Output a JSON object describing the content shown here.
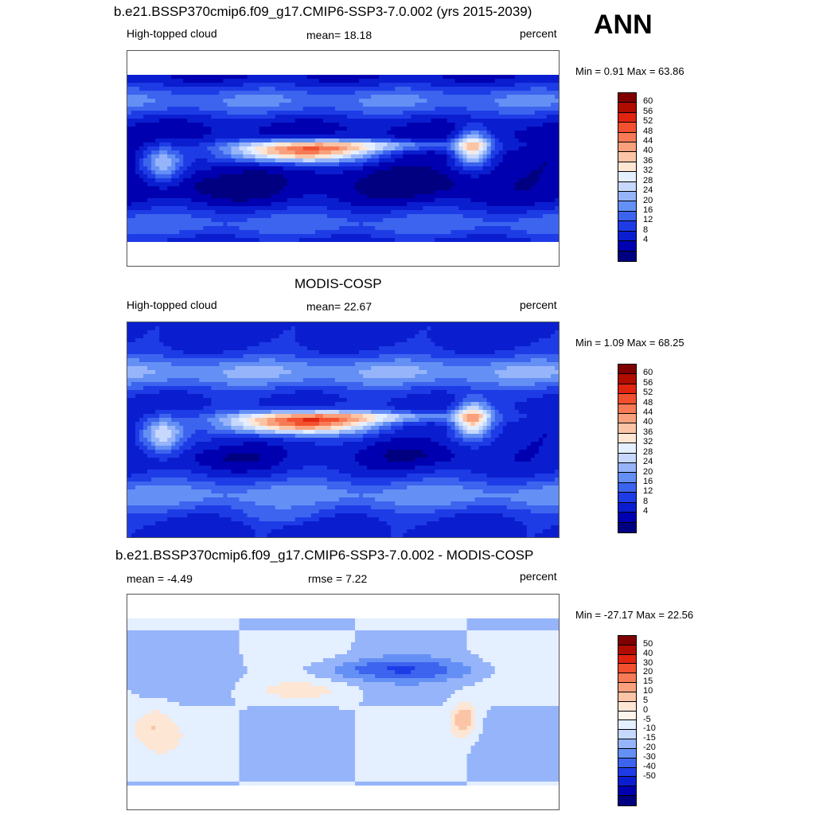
{
  "season": "ANN",
  "palettes": {
    "abs": [
      "#000080",
      "#0000b0",
      "#0a1ed0",
      "#1e3ce6",
      "#3c64ee",
      "#6490f5",
      "#96b4fa",
      "#c6d9fd",
      "#e4efff",
      "#fde6d4",
      "#fcc4a6",
      "#f9a07c",
      "#f67a55",
      "#f2502e",
      "#e02410",
      "#b00c00",
      "#7f0000"
    ],
    "diff": [
      "#000080",
      "#0000b0",
      "#0a1ed0",
      "#1e3ce6",
      "#3c64ee",
      "#6490f5",
      "#96b4fa",
      "#c6d9fd",
      "#e4efff",
      "#fdf4ec",
      "#fde6d4",
      "#fcc4a6",
      "#f9a07c",
      "#f67a55",
      "#f2502e",
      "#e02410",
      "#b00c00",
      "#7f0000"
    ]
  },
  "panels": [
    {
      "title": "b.e21.BSSP370cmip6.f09_g17.CMIP6-SSP3-7.0.002 (yrs 2015-2039)",
      "left_label": "High-topped cloud",
      "center_label": "mean=  18.18",
      "right_label": "percent",
      "minmax": "Min =   0.91 Max =  63.86",
      "palette": "abs",
      "ticks": [
        "60",
        "56",
        "52",
        "48",
        "44",
        "40",
        "36",
        "32",
        "28",
        "24",
        "20",
        "16",
        "12",
        "8",
        "4"
      ],
      "field": "model"
    },
    {
      "title": "MODIS-COSP",
      "left_label": "High-topped cloud",
      "center_label": "mean=  22.67",
      "right_label": "percent",
      "minmax": "Min =   1.09 Max =  68.25",
      "palette": "abs",
      "ticks": [
        "60",
        "56",
        "52",
        "48",
        "44",
        "40",
        "36",
        "32",
        "28",
        "24",
        "20",
        "16",
        "12",
        "8",
        "4"
      ],
      "field": "obs"
    },
    {
      "title": "b.e21.BSSP370cmip6.f09_g17.CMIP6-SSP3-7.0.002 - MODIS-COSP",
      "left_label": "mean =  -4.49",
      "center_label": "rmse =    7.22",
      "right_label": "percent",
      "minmax": "Min = -27.17 Max =  22.56",
      "palette": "diff",
      "ticks": [
        "50",
        "40",
        "30",
        "20",
        "15",
        "10",
        "5",
        "0",
        "-5",
        "-10",
        "-15",
        "-20",
        "-30",
        "-40",
        "-50"
      ],
      "field": "diff"
    }
  ]
}
